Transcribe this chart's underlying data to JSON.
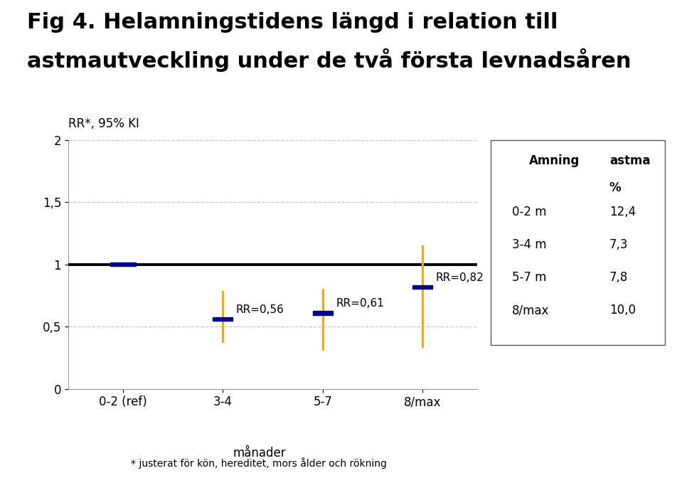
{
  "title_line1": "Fig 4. Helamningstidens längd i relation till",
  "title_line2": "astmautveckling under de två första levnadsåren",
  "ylabel": "RR*, 95% KI",
  "xlabel": "månader",
  "footnote": "* justerat för kön, hereditet, mors ålder och rökning",
  "x_labels": [
    "0-2 (ref)",
    "3-4",
    "5-7",
    "8/max"
  ],
  "rr_values": [
    1.0,
    0.56,
    0.61,
    0.82
  ],
  "rr_labels": [
    "",
    "RR=0,56",
    "RR=0,61",
    "RR=0,82"
  ],
  "ci_lower": [
    1.0,
    0.38,
    0.32,
    0.34
  ],
  "ci_upper": [
    1.0,
    0.78,
    0.8,
    1.15
  ],
  "point_color": "#00008B",
  "ci_color": "#FFA500",
  "ref_line_color": "#000000",
  "grid_color": "#C8C8C8",
  "ylim": [
    0,
    2.0
  ],
  "yticks": [
    0,
    0.5,
    1.0,
    1.5,
    2.0
  ],
  "ytick_labels": [
    "0",
    "0,5",
    "1",
    "1,5",
    "2"
  ],
  "table_headers": [
    "Amning",
    "astma\n%"
  ],
  "table_rows": [
    [
      "0-2 m",
      "12,4"
    ],
    [
      "3-4 m",
      "7,3"
    ],
    [
      "5-7 m",
      "7,8"
    ],
    [
      "8/max",
      "10,0"
    ]
  ],
  "background_color": "#ffffff",
  "title_fontsize": 22,
  "label_fontsize": 12,
  "tick_fontsize": 12,
  "table_fontsize": 12,
  "rr_label_fontsize": 11
}
